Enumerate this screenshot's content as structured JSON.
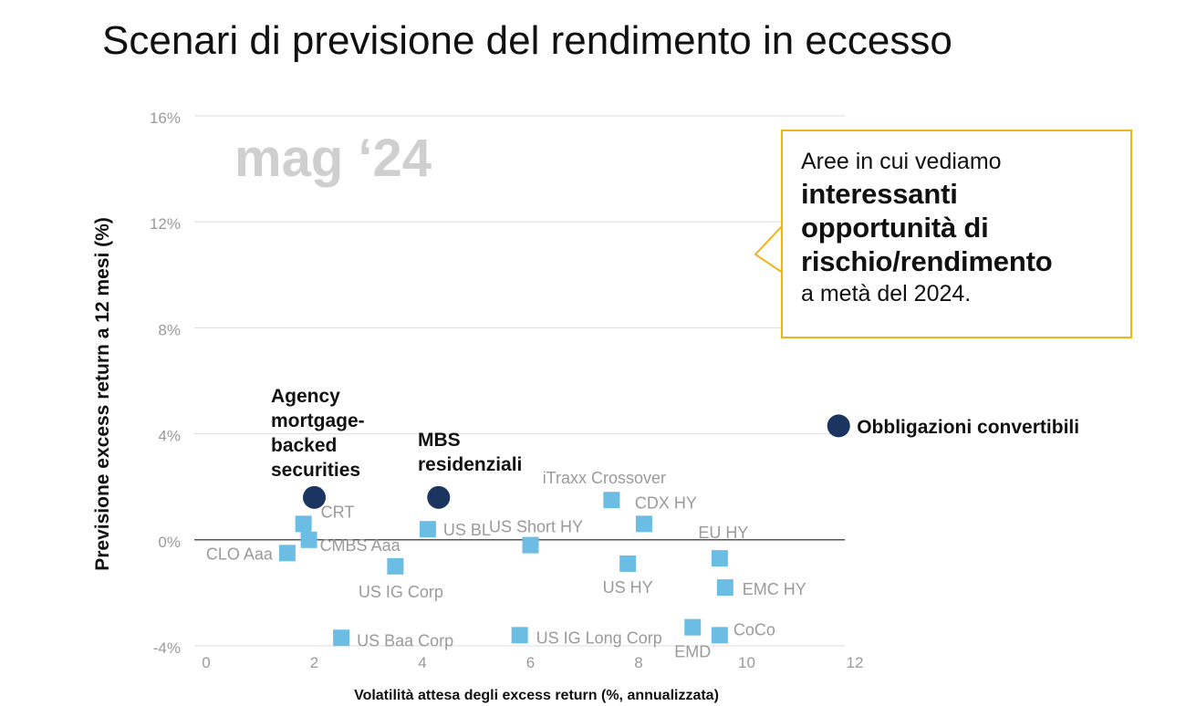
{
  "title": "Scenari di previsione del rendimento in eccesso",
  "period_label": "mag ‘24",
  "callout": {
    "lead": "Aree in cui vediamo",
    "strong_line1": "interessanti",
    "strong_line2": "opportunità di",
    "strong_line3": "rischio/rendimento",
    "tail": "a metà del 2024."
  },
  "colors": {
    "highlight": "#1b3560",
    "other": "#6bbde3",
    "callout_border": "#f2b21c",
    "grid": "#dddddd",
    "zero_line": "#555555",
    "muted_label": "#9a9a9a"
  },
  "chart_data": {
    "type": "scatter",
    "title": "Scenari di previsione del rendimento in eccesso",
    "xlabel": "Volatilità attesa degli excess return (%, annualizzata)",
    "ylabel": "Previsione excess return a 12 mesi (%)",
    "xlim": [
      0,
      12
    ],
    "ylim": [
      -4,
      16
    ],
    "x_ticks": [
      "0",
      "2",
      "4",
      "6",
      "8",
      "10",
      "12"
    ],
    "y_ticks": [
      "-4%",
      "0%",
      "4%",
      "8%",
      "12%",
      "16%"
    ],
    "grid": "horizontal",
    "series": [
      {
        "name": "",
        "marker": "circle",
        "points": [
          {
            "label": "Agency mortgage-backed securities",
            "x": 2.0,
            "y": 1.6
          },
          {
            "label": "MBS residenziali",
            "x": 4.3,
            "y": 1.6
          },
          {
            "label": "Obbligazioni convertibili",
            "x": 11.7,
            "y": 4.3
          }
        ]
      },
      {
        "name": "",
        "marker": "square",
        "points": [
          {
            "label": "CLO Aaa",
            "x": 1.5,
            "y": -0.5
          },
          {
            "label": "CRT",
            "x": 1.8,
            "y": 0.6
          },
          {
            "label": "CMBS Aaa",
            "x": 1.9,
            "y": 0.0
          },
          {
            "label": "US IG Corp",
            "x": 3.5,
            "y": -1.0
          },
          {
            "label": "US Baa Corp",
            "x": 2.5,
            "y": -3.7
          },
          {
            "label": "US BL",
            "x": 4.1,
            "y": 0.4
          },
          {
            "label": "US Short HY",
            "x": 6.0,
            "y": -0.2
          },
          {
            "label": "US IG Long Corp",
            "x": 5.8,
            "y": -3.6
          },
          {
            "label": "iTraxx Crossover",
            "x": 7.5,
            "y": 1.5
          },
          {
            "label": "CDX HY",
            "x": 8.1,
            "y": 0.6
          },
          {
            "label": "US HY",
            "x": 7.8,
            "y": -0.9
          },
          {
            "label": "EU HY",
            "x": 9.5,
            "y": -0.7
          },
          {
            "label": "EMC HY",
            "x": 9.6,
            "y": -1.8
          },
          {
            "label": "EMD",
            "x": 9.0,
            "y": -3.3
          },
          {
            "label": "CoCo",
            "x": 9.5,
            "y": -3.6
          }
        ]
      }
    ]
  }
}
